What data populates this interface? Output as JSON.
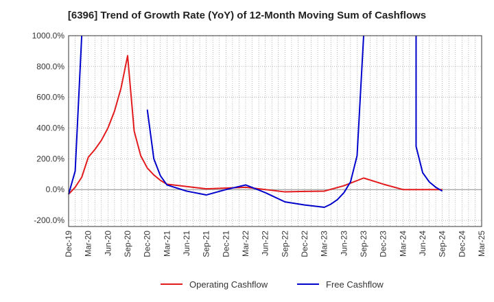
{
  "chart_data": {
    "type": "line",
    "title": "[6396]  Trend of Growth Rate (YoY) of 12-Month Moving Sum of Cashflows",
    "xlabel": "",
    "ylabel": "",
    "ylim": [
      -240,
      1000
    ],
    "y_ticks": [
      -200,
      0,
      200,
      400,
      600,
      800,
      1000
    ],
    "y_tick_labels": [
      "-200.0%",
      "0.0%",
      "200.0%",
      "400.0%",
      "600.0%",
      "800.0%",
      "1000.0%"
    ],
    "x_tick_labels": [
      "Dec-19",
      "Mar-20",
      "Jun-20",
      "Sep-20",
      "Dec-20",
      "Mar-21",
      "Jun-21",
      "Sep-21",
      "Dec-21",
      "Mar-22",
      "Jun-22",
      "Sep-22",
      "Dec-22",
      "Mar-23",
      "Jun-23",
      "Sep-23",
      "Dec-23",
      "Mar-24",
      "Jun-24",
      "Sep-24",
      "Dec-24",
      "Mar-25"
    ],
    "x_start": "Dec-19",
    "x_end": "Mar-25",
    "grid": true,
    "legend_position": "bottom",
    "series": [
      {
        "name": "Operating Cashflow",
        "color": "#e31a1c",
        "points": [
          [
            "Dec-19",
            -30
          ],
          [
            "Jan-20",
            15
          ],
          [
            "Feb-20",
            80
          ],
          [
            "Mar-20",
            210
          ],
          [
            "Apr-20",
            260
          ],
          [
            "May-20",
            320
          ],
          [
            "Jun-20",
            400
          ],
          [
            "Jul-20",
            510
          ],
          [
            "Aug-20",
            660
          ],
          [
            "Sep-20",
            870
          ],
          [
            "Oct-20",
            380
          ],
          [
            "Nov-20",
            220
          ],
          [
            "Dec-20",
            140
          ],
          [
            "Jan-21",
            95
          ],
          [
            "Feb-21",
            60
          ],
          [
            "Mar-21",
            35
          ],
          [
            "Jun-21",
            20
          ],
          [
            "Sep-21",
            5
          ],
          [
            "Dec-21",
            10
          ],
          [
            "Mar-22",
            15
          ],
          [
            "Jun-22",
            0
          ],
          [
            "Sep-22",
            -15
          ],
          [
            "Dec-22",
            -12
          ],
          [
            "Mar-23",
            -10
          ],
          [
            "Jun-23",
            25
          ],
          [
            "Sep-23",
            75
          ],
          [
            "Dec-23",
            35
          ],
          [
            "Mar-24",
            0
          ],
          [
            "Jun-24",
            0
          ],
          [
            "Sep-24",
            0
          ]
        ]
      },
      {
        "name": "Free Cashflow",
        "color": "#0000cc",
        "segments": [
          [
            [
              "Dec-19",
              -30
            ],
            [
              "Jan-20",
              120
            ],
            [
              "Feb-20",
              1000
            ]
          ],
          [
            [
              "Dec-20",
              520
            ],
            [
              "Jan-21",
              200
            ],
            [
              "Feb-21",
              90
            ],
            [
              "Mar-21",
              30
            ],
            [
              "Jun-21",
              -10
            ],
            [
              "Sep-21",
              -35
            ],
            [
              "Dec-21",
              0
            ],
            [
              "Mar-22",
              30
            ],
            [
              "Jun-22",
              -20
            ],
            [
              "Sep-22",
              -80
            ],
            [
              "Dec-22",
              -100
            ],
            [
              "Mar-23",
              -115
            ],
            [
              "Apr-23",
              -95
            ],
            [
              "May-23",
              -65
            ],
            [
              "Jun-23",
              -20
            ],
            [
              "Jul-23",
              50
            ],
            [
              "Aug-23",
              220
            ],
            [
              "Sep-23",
              1000
            ]
          ],
          [
            [
              "May-24",
              1000
            ],
            [
              "May-24",
              280
            ],
            [
              "Jun-24",
              110
            ],
            [
              "Jul-24",
              50
            ],
            [
              "Aug-24",
              15
            ],
            [
              "Sep-24",
              -10
            ]
          ]
        ]
      }
    ]
  }
}
